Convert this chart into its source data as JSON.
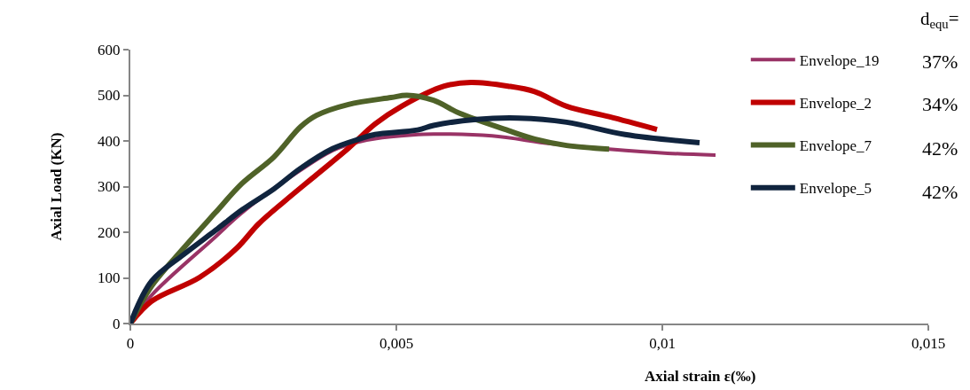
{
  "chart_data": {
    "type": "line",
    "xlabel": "Axial strain ε(‰)",
    "ylabel": "Axial Load (KN)",
    "xlim": [
      0,
      0.015
    ],
    "xticks": [
      0,
      {
        "value": 0.005,
        "label": "0,005"
      },
      {
        "value": 0.01,
        "label": "0,01"
      },
      {
        "value": 0.015,
        "label": "0,015"
      }
    ],
    "ylim": [
      0,
      600
    ],
    "yticks": [
      0,
      100,
      200,
      300,
      400,
      500,
      600
    ],
    "legend": "top right",
    "marker": "none",
    "line_style": "solid",
    "annotations": [
      "d$_{equ}$=",
      "37%",
      "34%",
      "42%",
      "42%"
    ],
    "series": [
      {
        "name": "Envelope_19",
        "color": "#993366",
        "x": [
          0,
          0.0004,
          0.0016,
          0.0021,
          0.003,
          0.0038,
          0.0043,
          0.0046,
          0.0053,
          0.0057,
          0.0068,
          0.0079,
          0.009,
          0.0101,
          0.011
        ],
        "values": [
          0,
          62,
          190,
          243,
          320,
          379,
          398,
          405,
          413,
          415,
          411,
          394,
          382,
          373,
          369
        ]
      },
      {
        "name": "Envelope_2",
        "color": "#c00000",
        "x": [
          0,
          0.0004,
          0.0013,
          0.002,
          0.0024,
          0.0029,
          0.0035,
          0.0041,
          0.0046,
          0.0051,
          0.0059,
          0.0064,
          0.0071,
          0.0076,
          0.0082,
          0.009,
          0.0099
        ],
        "values": [
          0,
          49,
          101,
          165,
          217,
          268,
          326,
          384,
          437,
          476,
          520,
          528,
          520,
          508,
          476,
          453,
          425
        ]
      },
      {
        "name": "Envelope_7",
        "color": "#4f6228",
        "x": [
          0,
          0.0004,
          0.001,
          0.0016,
          0.0021,
          0.0027,
          0.0032,
          0.0035,
          0.0041,
          0.0049,
          0.0052,
          0.0057,
          0.0062,
          0.0071,
          0.0076,
          0.0082,
          0.009
        ],
        "values": [
          0,
          82,
          165,
          243,
          307,
          365,
          431,
          456,
          480,
          495,
          500,
          489,
          460,
          423,
          404,
          390,
          382
        ]
      },
      {
        "name": "Envelope_5",
        "color": "#10243e",
        "x": [
          0,
          0.0004,
          0.001,
          0.0016,
          0.0021,
          0.0027,
          0.0032,
          0.0038,
          0.0043,
          0.0046,
          0.0054,
          0.0057,
          0.0065,
          0.0073,
          0.0082,
          0.0093,
          0.0107
        ],
        "values": [
          0,
          93,
          151,
          204,
          249,
          295,
          340,
          383,
          404,
          414,
          424,
          434,
          447,
          450,
          441,
          414,
          396
        ]
      }
    ]
  }
}
